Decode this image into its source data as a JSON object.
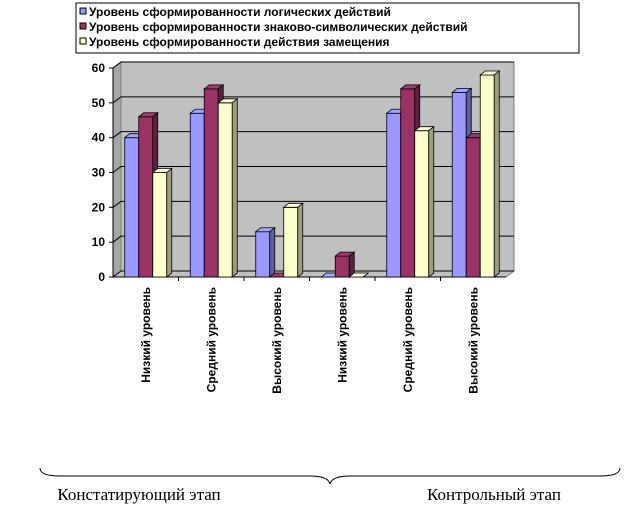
{
  "chart_data": {
    "type": "bar",
    "categories": [
      "Низкий уровень",
      "Средний уровень",
      "Высокий уровень",
      "Низкий уровень",
      "Средний уровень",
      "Высокий уровень"
    ],
    "groups": [
      {
        "label": "Констатирующий этап",
        "categories": [
          0,
          1,
          2
        ]
      },
      {
        "label": "Контрольный этап",
        "categories": [
          3,
          4,
          5
        ]
      }
    ],
    "series": [
      {
        "name": "Уровень сформированности логических действий",
        "color": "#9999ff",
        "values": [
          40,
          47,
          13,
          0,
          47,
          53
        ]
      },
      {
        "name": "Уровень сформированности знаково-символических действий",
        "color": "#993366",
        "values": [
          46,
          54,
          0,
          6,
          54,
          40
        ]
      },
      {
        "name": "Уровень сформированности действия замещения",
        "color": "#ffffcc",
        "values": [
          30,
          50,
          20,
          0,
          42,
          58
        ]
      }
    ],
    "yticks": [
      0,
      10,
      20,
      30,
      40,
      50,
      60
    ],
    "ylim": [
      0,
      60
    ],
    "grid": true,
    "legend": "top",
    "style": "3d-columns",
    "wall_color": "#c0c0c0"
  }
}
